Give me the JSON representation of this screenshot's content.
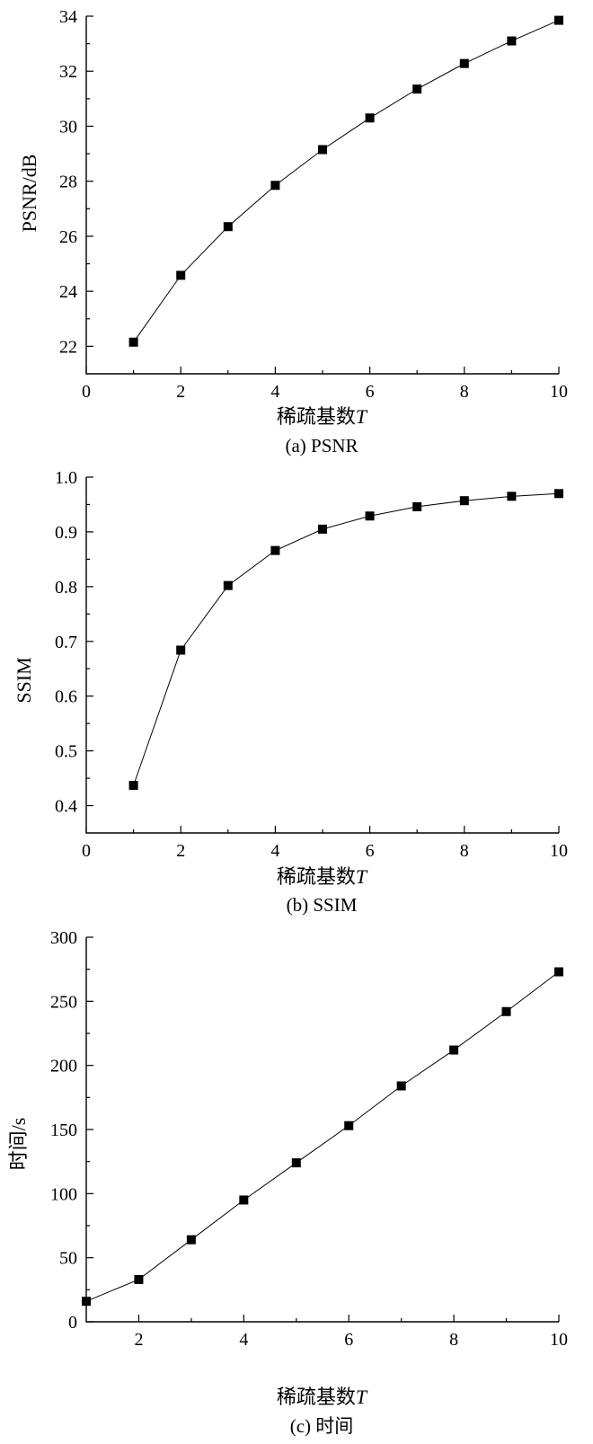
{
  "figure": {
    "panels": [
      {
        "caption": "(a) PSNR",
        "xlabel": "稀疏基数",
        "xlabel_var": "T",
        "ylabel": "PSNR/dB"
      },
      {
        "caption": "(b) SSIM",
        "xlabel": "稀疏基数",
        "xlabel_var": "T",
        "ylabel": "SSIM"
      },
      {
        "caption": "(c) 时间",
        "xlabel": "稀疏基数",
        "xlabel_var": "T",
        "ylabel": "时间/s"
      }
    ]
  },
  "chart_data": [
    {
      "type": "line",
      "title": "",
      "caption": "(a) PSNR",
      "xlabel": "稀疏基数T",
      "ylabel": "PSNR/dB",
      "xlim": [
        0,
        10
      ],
      "ylim": [
        21,
        34
      ],
      "xticks": [
        0,
        2,
        4,
        6,
        8,
        10
      ],
      "yticks": [
        22,
        24,
        26,
        28,
        30,
        32,
        34
      ],
      "grid": false,
      "legend": "none",
      "marker": "square",
      "color": "#000000",
      "x": [
        1,
        2,
        3,
        4,
        5,
        6,
        7,
        8,
        9,
        10
      ],
      "y": [
        22.15,
        24.58,
        26.35,
        27.85,
        29.15,
        30.3,
        31.35,
        32.28,
        33.1,
        33.85
      ]
    },
    {
      "type": "line",
      "title": "",
      "caption": "(b) SSIM",
      "xlabel": "稀疏基数T",
      "ylabel": "SSIM",
      "xlim": [
        0,
        10
      ],
      "ylim": [
        0.35,
        1.0
      ],
      "xticks": [
        0,
        2,
        4,
        6,
        8,
        10
      ],
      "yticks": [
        0.4,
        0.5,
        0.6,
        0.7,
        0.8,
        0.9,
        1.0
      ],
      "ytick_labels": [
        "0.4",
        "0.5",
        "0.6",
        "0.7",
        "0.8",
        "0.9",
        "1.0"
      ],
      "grid": false,
      "legend": "none",
      "marker": "square",
      "color": "#000000",
      "x": [
        1,
        2,
        3,
        4,
        5,
        6,
        7,
        8,
        9,
        10
      ],
      "y": [
        0.437,
        0.684,
        0.802,
        0.866,
        0.905,
        0.929,
        0.946,
        0.957,
        0.965,
        0.97
      ]
    },
    {
      "type": "line",
      "title": "",
      "caption": "(c) 时间",
      "xlabel": "稀疏基数T",
      "ylabel": "时间/s",
      "xlim": [
        1,
        10
      ],
      "ylim": [
        0,
        300
      ],
      "xticks": [
        2,
        4,
        6,
        8,
        10
      ],
      "yticks": [
        0,
        50,
        100,
        150,
        200,
        250,
        300
      ],
      "grid": false,
      "legend": "none",
      "marker": "square",
      "color": "#000000",
      "x": [
        1,
        2,
        3,
        4,
        5,
        6,
        7,
        8,
        9,
        10
      ],
      "y": [
        16,
        33,
        64,
        95,
        124,
        153,
        184,
        212,
        242,
        273
      ]
    }
  ]
}
